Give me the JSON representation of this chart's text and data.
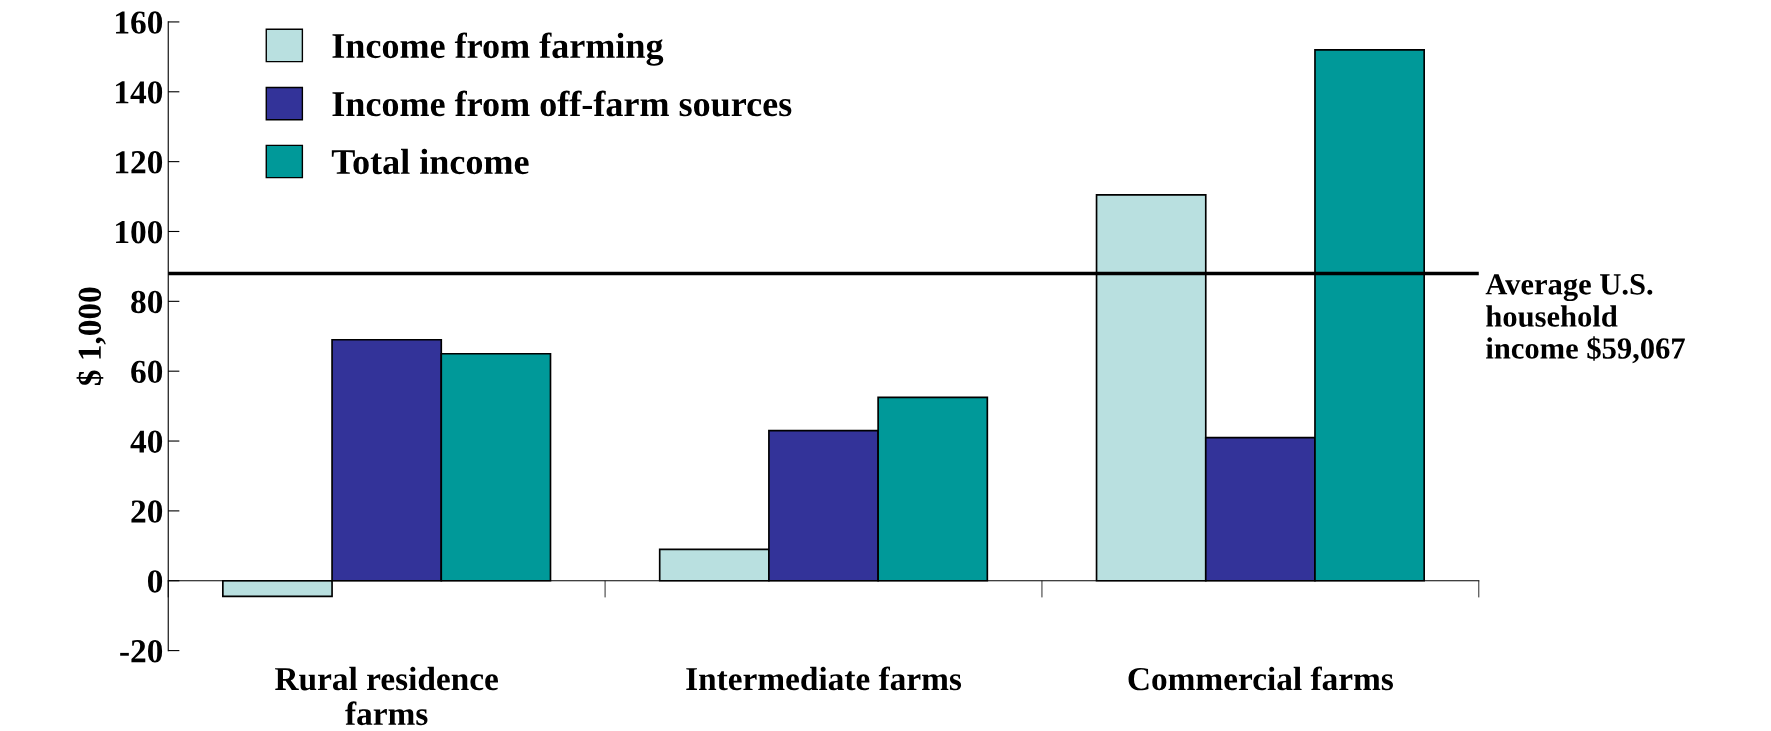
{
  "chart_data": {
    "type": "bar",
    "ylabel": "$ 1,000",
    "categories": [
      "Rural residence\nfarms",
      "Intermediate farms",
      "Commercial farms"
    ],
    "series": [
      {
        "name": "Income from farming",
        "color": "#b9e0e0",
        "values": [
          -4.5,
          9,
          110.5
        ]
      },
      {
        "name": "Income from off-farm sources",
        "color": "#333399",
        "values": [
          69,
          43,
          41
        ]
      },
      {
        "name": "Total income",
        "color": "#009999",
        "values": [
          65,
          52.5,
          152
        ]
      }
    ],
    "ylim": [
      -20,
      160
    ],
    "yticks": [
      -20,
      0,
      20,
      40,
      60,
      80,
      100,
      120,
      140,
      160
    ],
    "grid": false,
    "legend": "top left",
    "ref_lines": [
      {
        "axis": "y",
        "value": 88,
        "label": "Average U.S.\nhousehold\nincome $59,067",
        "color": "#000000"
      }
    ]
  }
}
